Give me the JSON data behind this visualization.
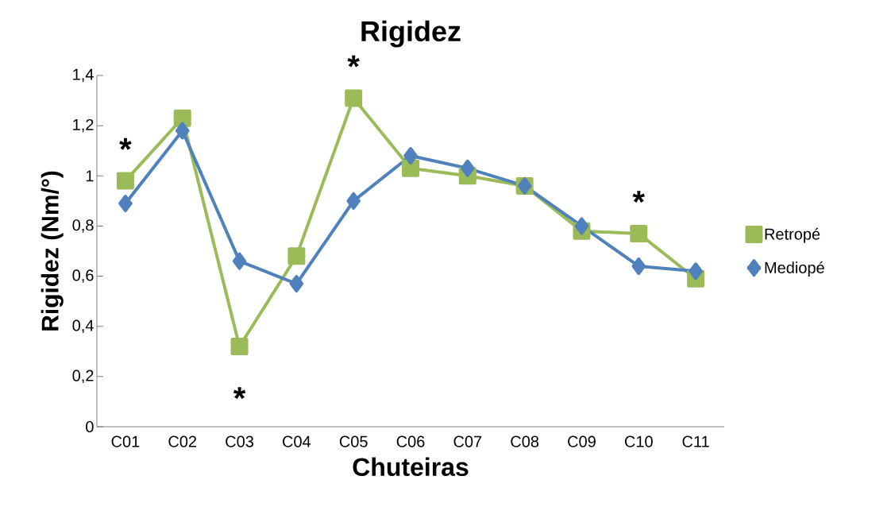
{
  "chart_data": {
    "type": "line",
    "title": "Rigidez",
    "xlabel": "Chuteiras",
    "ylabel": "Rigidez (Nm/°)",
    "categories": [
      "C01",
      "C02",
      "C03",
      "C04",
      "C05",
      "C06",
      "C07",
      "C08",
      "C09",
      "C10",
      "C11"
    ],
    "series": [
      {
        "name": "Retropé",
        "color": "#9bbb59",
        "marker": "square",
        "values": [
          0.98,
          1.23,
          0.32,
          0.68,
          1.31,
          1.03,
          1.0,
          0.96,
          0.78,
          0.77,
          0.59
        ]
      },
      {
        "name": "Mediopé",
        "color": "#4f81bd",
        "marker": "diamond",
        "values": [
          0.89,
          1.18,
          0.66,
          0.57,
          0.9,
          1.08,
          1.03,
          0.96,
          0.8,
          0.64,
          0.62
        ]
      }
    ],
    "ylim": [
      0,
      1.4
    ],
    "yticks": [
      0,
      {
        "value": 0.2,
        "label": "0,2"
      },
      {
        "value": 0.4,
        "label": "0,4"
      },
      {
        "value": 0.6,
        "label": "0,6"
      },
      {
        "value": 0.8,
        "label": "0,8"
      },
      1,
      {
        "value": 1.2,
        "label": "1,2"
      },
      {
        "value": 1.4,
        "label": "1,4"
      }
    ],
    "annotations": [
      {
        "text": "*",
        "x": "C01",
        "y": 0.98
      },
      {
        "text": "*",
        "x": "C03",
        "y": 0.32
      },
      {
        "text": "*",
        "x": "C05",
        "y": 1.31
      },
      {
        "text": "*",
        "x": "C10",
        "y": 0.77
      }
    ],
    "legend": "right",
    "grid": false,
    "line_style": "solid"
  }
}
